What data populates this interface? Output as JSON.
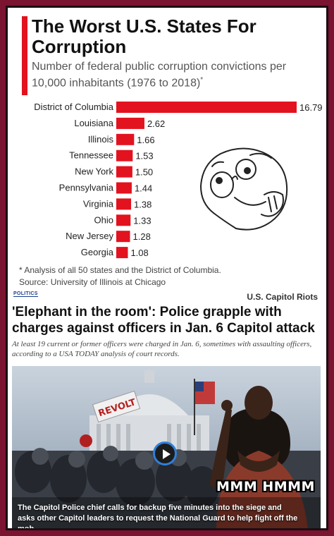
{
  "chart_data": {
    "type": "bar",
    "orientation": "horizontal",
    "title": "The Worst U.S. States For Corruption",
    "subtitle": "Number of federal public corruption convictions per 10,000 inhabitants (1976 to 2018)",
    "subtitle_mark": "*",
    "categories": [
      "District of Columbia",
      "Louisiana",
      "Illinois",
      "Tennessee",
      "New York",
      "Pennsylvania",
      "Virginia",
      "Ohio",
      "New Jersey",
      "Georgia"
    ],
    "values": [
      16.79,
      2.62,
      1.66,
      1.53,
      1.5,
      1.44,
      1.38,
      1.33,
      1.28,
      1.08
    ],
    "value_labels": [
      "16.79",
      "2.62",
      "1.66",
      "1.53",
      "1.50",
      "1.44",
      "1.38",
      "1.33",
      "1.28",
      "1.08"
    ],
    "bar_color": "#e3121f",
    "grid": false,
    "legend": "none",
    "footnote": "* Analysis of all 50 states and the District of Columbia.",
    "source": "Source: University of Illinois at Chicago"
  },
  "colors": {
    "border": "#7a1430",
    "accent": "#e3121f",
    "link_blue": "#1a3e8c"
  },
  "article": {
    "section": "POLITICS",
    "topic": "U.S. Capitol Riots",
    "headline": "'Elephant in the room': Police grapple with charges against officers in Jan. 6 Capitol attack",
    "deck": "At least 19 current or former officers were charged in Jan. 6, sometimes with assaulting officers, according to a USA TODAY analysis of court records.",
    "video_caption": "The Capitol Police chief calls for backup five minutes into the siege and asks other Capitol leaders to request the National Guard to help fight off the mob.",
    "sign_text": "REVOLT",
    "meme_caption": "MMM HMMM"
  },
  "icons": {
    "play": "play-icon",
    "meme_face": "thinking-face-icon"
  }
}
